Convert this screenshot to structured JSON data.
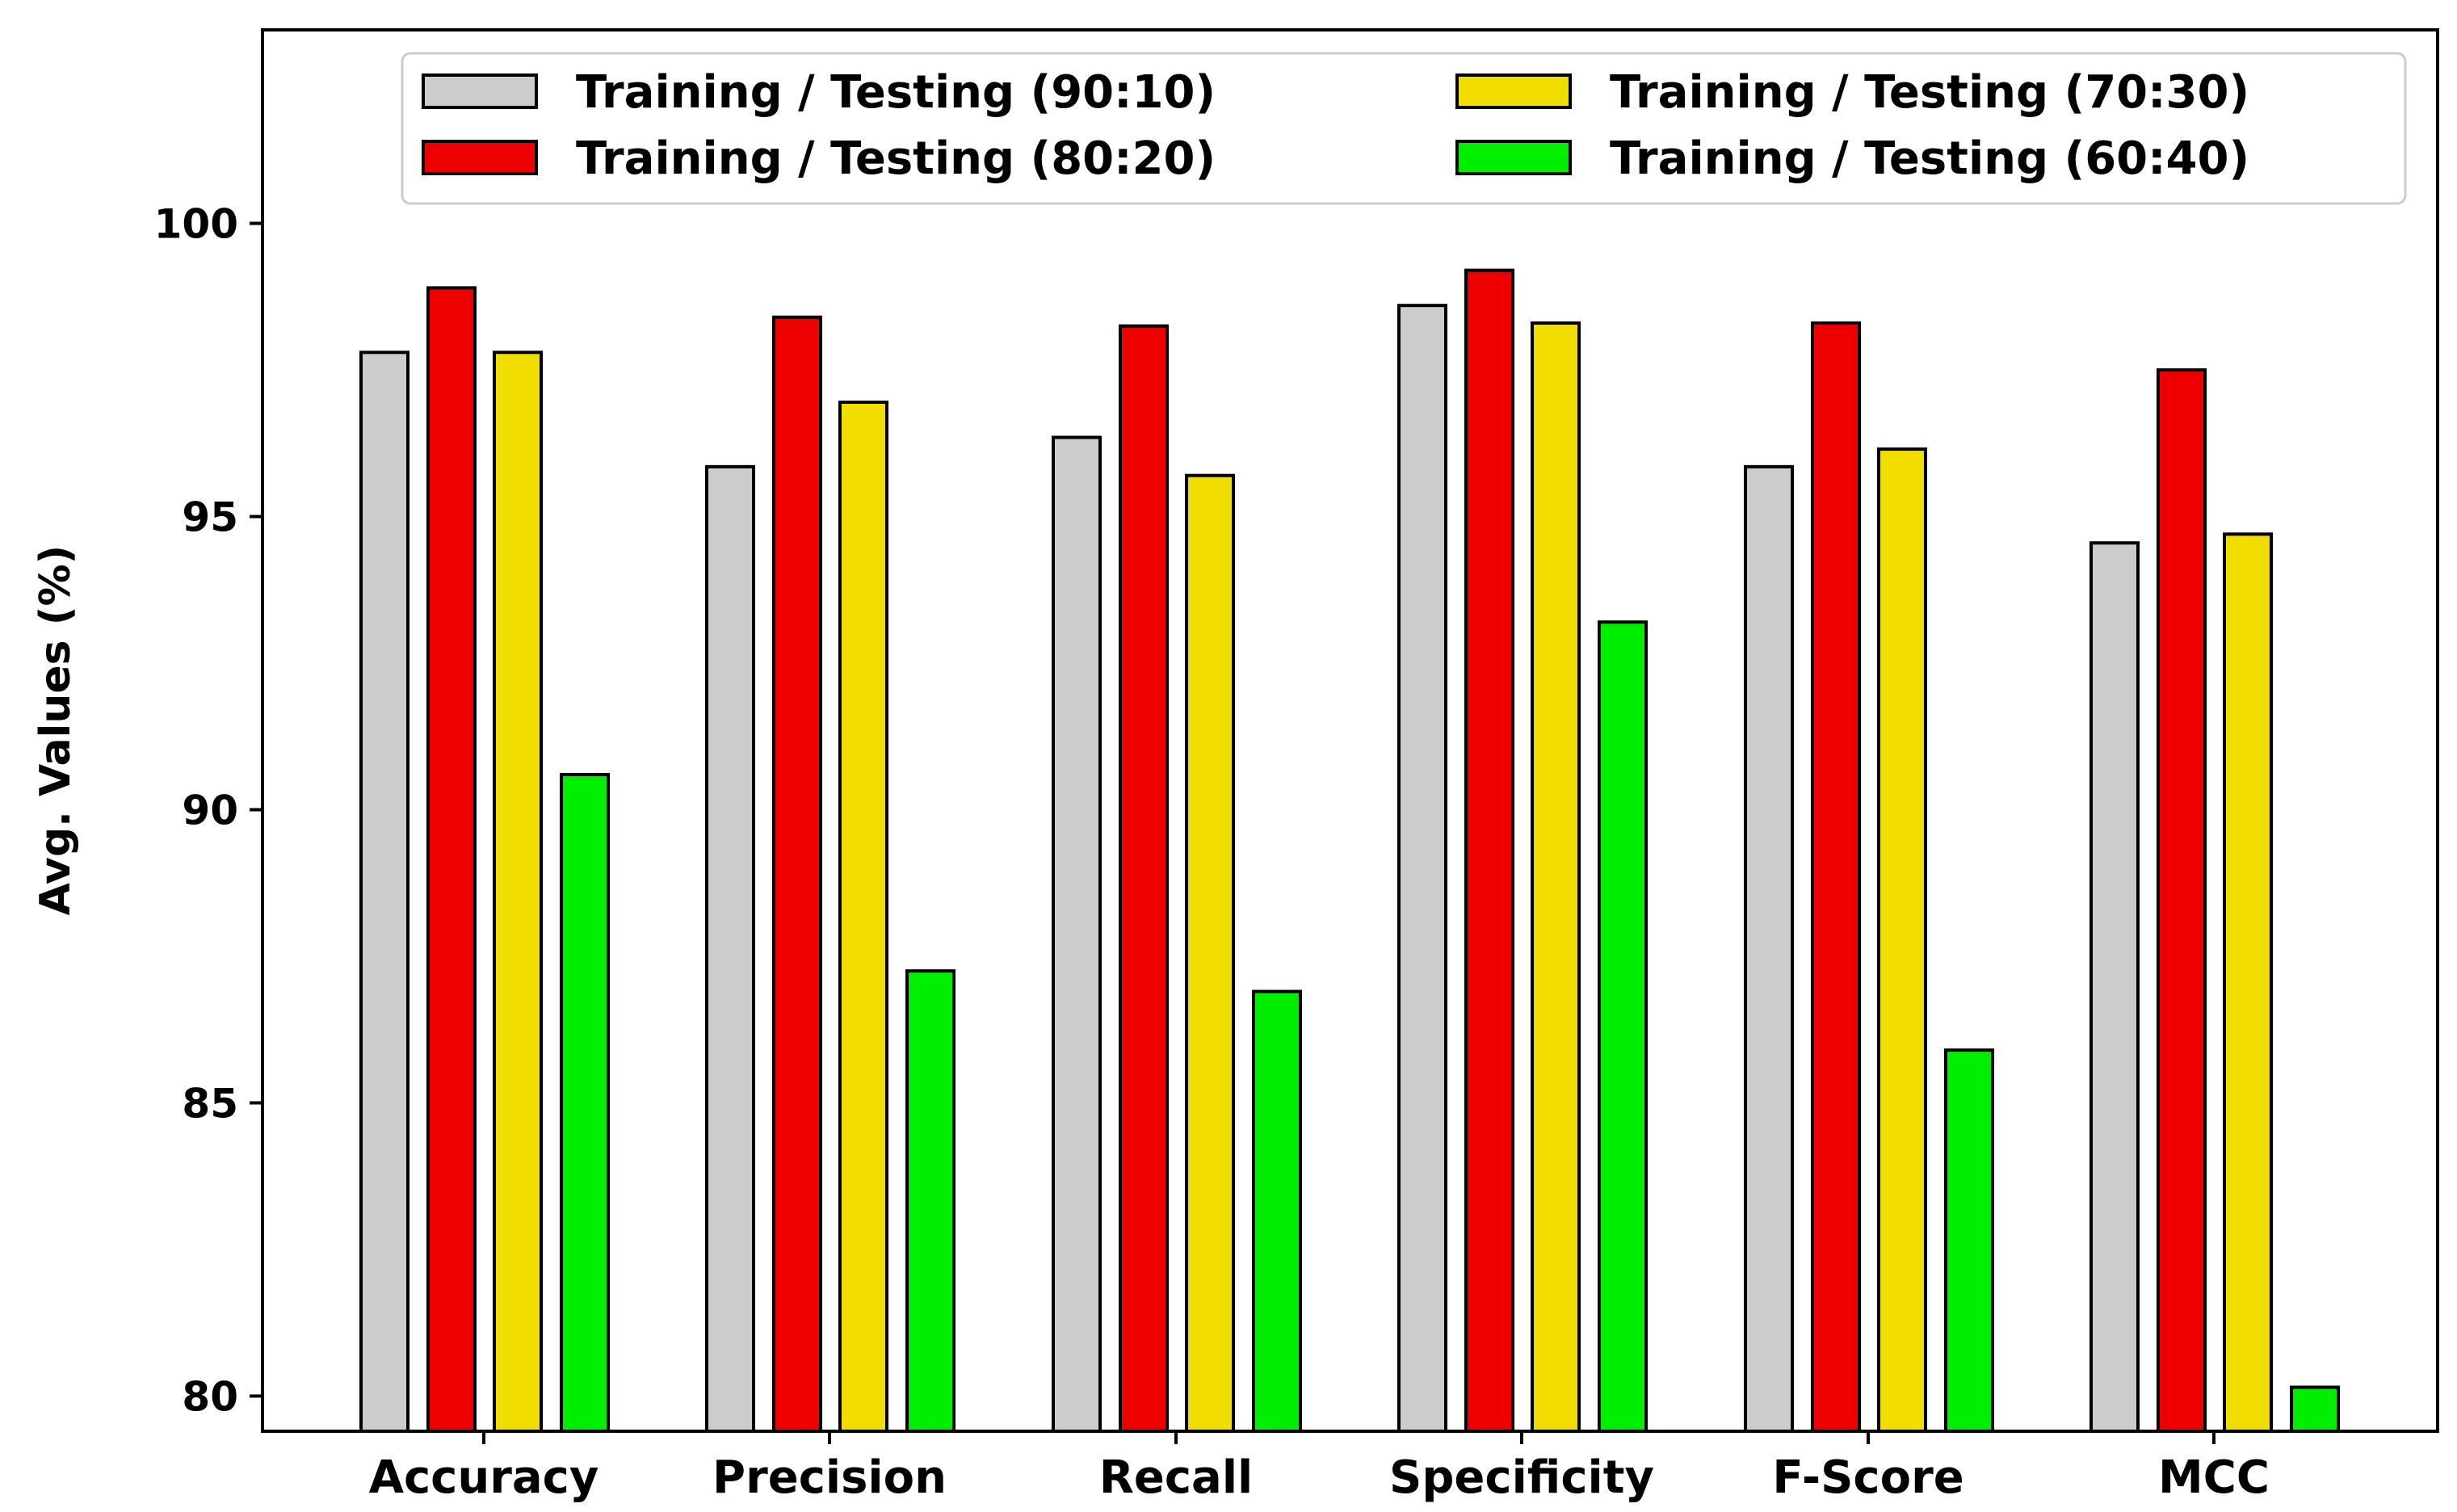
{
  "chart_data": {
    "type": "bar",
    "title": "",
    "xlabel": "",
    "ylabel": "Avg. Values (%)",
    "ylim": [
      79.4,
      103.3
    ],
    "yticks": [
      80,
      85,
      90,
      95,
      100
    ],
    "categories": [
      "Accuracy",
      "Precision",
      "Recall",
      "Specificity",
      "F-Score",
      "MCC"
    ],
    "series": [
      {
        "name": "Training / Testing (90:10)",
        "color": "#cccccc",
        "values": [
          97.8,
          95.85,
          96.35,
          98.6,
          95.85,
          94.55
        ]
      },
      {
        "name": "Training / Testing (80:20)",
        "color": "#ee0000",
        "values": [
          98.9,
          98.4,
          98.25,
          99.2,
          98.3,
          97.5
        ]
      },
      {
        "name": "Training / Testing (70:30)",
        "color": "#f2dd00",
        "values": [
          97.8,
          96.95,
          95.7,
          98.3,
          96.15,
          94.7
        ]
      },
      {
        "name": "Training / Testing (60:40)",
        "color": "#00ee00",
        "values": [
          90.6,
          87.25,
          86.9,
          93.2,
          85.9,
          80.15
        ]
      }
    ],
    "legend": {
      "position": "top-right",
      "columns": 2
    },
    "grid": false
  }
}
